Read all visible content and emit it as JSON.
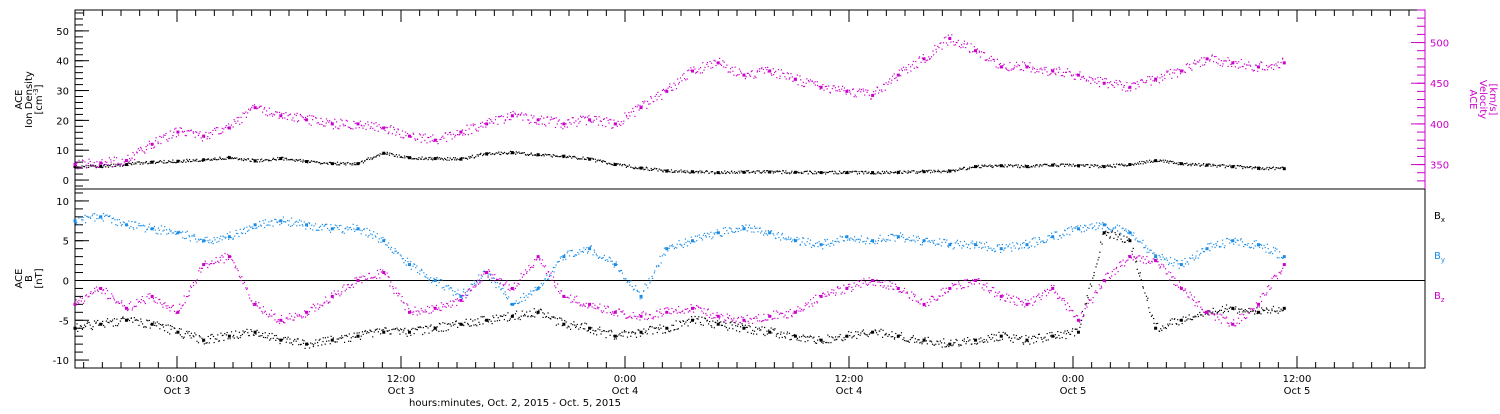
{
  "chart_data": [
    {
      "type": "scatter",
      "y_axis_left": {
        "lines": [
          "ACE",
          "Ion Density",
          "[cm^-3]"
        ],
        "range": [
          -3,
          57
        ],
        "ticks": [
          "0",
          "10",
          "20",
          "30",
          "40",
          "50"
        ],
        "tick_values": [
          0,
          10,
          20,
          30,
          40,
          50
        ]
      },
      "y_axis_right": {
        "lines": [
          "ACE",
          "Velocity",
          "[km/s]"
        ],
        "range": [
          320,
          540
        ],
        "ticks": [
          "350",
          "400",
          "450",
          "500"
        ],
        "tick_values": [
          350,
          400,
          450,
          500
        ],
        "color": "#cc00cc"
      },
      "series": [
        {
          "axis": "left",
          "color": "#000000",
          "points": [
            [
              0,
              4.5
            ],
            [
              4,
              4.6
            ],
            [
              8,
              5.2
            ],
            [
              12,
              6.0
            ],
            [
              16,
              6.3
            ],
            [
              20,
              6.8
            ],
            [
              24,
              7.5
            ],
            [
              28,
              6.4
            ],
            [
              32,
              7.2
            ],
            [
              36,
              6.2
            ],
            [
              40,
              5.5
            ],
            [
              44,
              5.5
            ],
            [
              48,
              9.0
            ],
            [
              52,
              7.5
            ],
            [
              56,
              7.2
            ],
            [
              60,
              7.0
            ],
            [
              64,
              8.8
            ],
            [
              68,
              9.2
            ],
            [
              72,
              8.5
            ],
            [
              76,
              8.0
            ],
            [
              80,
              7.0
            ],
            [
              84,
              5.2
            ],
            [
              88,
              4.0
            ],
            [
              92,
              3.0
            ],
            [
              96,
              2.8
            ],
            [
              100,
              2.5
            ],
            [
              104,
              2.6
            ],
            [
              108,
              2.7
            ],
            [
              112,
              2.6
            ],
            [
              116,
              2.5
            ],
            [
              120,
              2.5
            ],
            [
              124,
              2.5
            ],
            [
              128,
              2.6
            ],
            [
              132,
              2.8
            ],
            [
              136,
              3.0
            ],
            [
              140,
              4.5
            ],
            [
              144,
              4.8
            ],
            [
              148,
              4.5
            ],
            [
              152,
              5.0
            ],
            [
              156,
              4.8
            ],
            [
              160,
              4.5
            ],
            [
              164,
              5.2
            ],
            [
              168,
              6.5
            ],
            [
              172,
              5.5
            ],
            [
              176,
              5.0
            ],
            [
              180,
              4.5
            ],
            [
              184,
              4.0
            ],
            [
              188,
              3.8
            ]
          ]
        },
        {
          "axis": "right",
          "color": "#cc00cc",
          "points": [
            [
              0,
              350
            ],
            [
              4,
              352
            ],
            [
              8,
              355
            ],
            [
              12,
              375
            ],
            [
              16,
              390
            ],
            [
              20,
              385
            ],
            [
              24,
              395
            ],
            [
              28,
              420
            ],
            [
              32,
              410
            ],
            [
              36,
              405
            ],
            [
              40,
              400
            ],
            [
              44,
              400
            ],
            [
              48,
              395
            ],
            [
              52,
              385
            ],
            [
              56,
              380
            ],
            [
              60,
              390
            ],
            [
              64,
              400
            ],
            [
              68,
              410
            ],
            [
              72,
              405
            ],
            [
              76,
              400
            ],
            [
              80,
              405
            ],
            [
              84,
              400
            ],
            [
              88,
              420
            ],
            [
              92,
              440
            ],
            [
              96,
              465
            ],
            [
              100,
              475
            ],
            [
              104,
              460
            ],
            [
              108,
              465
            ],
            [
              112,
              455
            ],
            [
              116,
              445
            ],
            [
              120,
              440
            ],
            [
              124,
              435
            ],
            [
              128,
              460
            ],
            [
              132,
              480
            ],
            [
              136,
              505
            ],
            [
              140,
              490
            ],
            [
              144,
              470
            ],
            [
              148,
              470
            ],
            [
              152,
              465
            ],
            [
              156,
              460
            ],
            [
              160,
              450
            ],
            [
              164,
              445
            ],
            [
              168,
              455
            ],
            [
              172,
              465
            ],
            [
              176,
              480
            ],
            [
              180,
              475
            ],
            [
              184,
              470
            ],
            [
              188,
              475
            ]
          ]
        }
      ]
    },
    {
      "type": "scatter",
      "y_axis_left": {
        "lines": [
          "ACE",
          "B",
          "[nT]"
        ],
        "range": [
          -11,
          11.5
        ],
        "ticks": [
          "-10",
          "-5",
          "0",
          "5",
          "10"
        ],
        "tick_values": [
          -10,
          -5,
          0,
          5,
          10
        ]
      },
      "zero_line": true,
      "legend": [
        {
          "label": "B",
          "sub": "x",
          "color": "#000000"
        },
        {
          "label": "B",
          "sub": "y",
          "color": "#1a8ce6"
        },
        {
          "label": "B",
          "sub": "z",
          "color": "#cc00cc"
        }
      ],
      "series": [
        {
          "name": "Bx",
          "color": "#000000",
          "points": [
            [
              0,
              -6
            ],
            [
              4,
              -5.5
            ],
            [
              8,
              -5
            ],
            [
              12,
              -5.5
            ],
            [
              16,
              -6.5
            ],
            [
              20,
              -7.5
            ],
            [
              24,
              -7
            ],
            [
              28,
              -6.5
            ],
            [
              32,
              -7.5
            ],
            [
              36,
              -8
            ],
            [
              40,
              -7.5
            ],
            [
              44,
              -7
            ],
            [
              48,
              -6.5
            ],
            [
              52,
              -6.5
            ],
            [
              56,
              -6
            ],
            [
              60,
              -5.5
            ],
            [
              64,
              -5
            ],
            [
              68,
              -4.5
            ],
            [
              72,
              -4
            ],
            [
              76,
              -5.5
            ],
            [
              80,
              -6
            ],
            [
              84,
              -7
            ],
            [
              88,
              -6.5
            ],
            [
              92,
              -6
            ],
            [
              96,
              -5
            ],
            [
              100,
              -5.5
            ],
            [
              104,
              -6
            ],
            [
              108,
              -6.5
            ],
            [
              112,
              -7
            ],
            [
              116,
              -7.5
            ],
            [
              120,
              -7
            ],
            [
              124,
              -6.5
            ],
            [
              128,
              -7
            ],
            [
              132,
              -7.5
            ],
            [
              136,
              -8
            ],
            [
              140,
              -7.5
            ],
            [
              144,
              -7
            ],
            [
              148,
              -7.5
            ],
            [
              152,
              -7
            ],
            [
              156,
              -6.5
            ],
            [
              160,
              6
            ],
            [
              164,
              5
            ],
            [
              168,
              -6
            ],
            [
              172,
              -5
            ],
            [
              176,
              -4
            ],
            [
              180,
              -3.5
            ],
            [
              184,
              -4
            ],
            [
              188,
              -3.5
            ]
          ]
        },
        {
          "name": "By",
          "color": "#1a8ce6",
          "points": [
            [
              0,
              7.5
            ],
            [
              4,
              8
            ],
            [
              8,
              7
            ],
            [
              12,
              6.5
            ],
            [
              16,
              6
            ],
            [
              20,
              5
            ],
            [
              24,
              5.5
            ],
            [
              28,
              7
            ],
            [
              32,
              7.5
            ],
            [
              36,
              7
            ],
            [
              40,
              6.5
            ],
            [
              44,
              6.5
            ],
            [
              48,
              5
            ],
            [
              52,
              2
            ],
            [
              56,
              0
            ],
            [
              60,
              -2
            ],
            [
              64,
              1
            ],
            [
              68,
              -3
            ],
            [
              72,
              -1
            ],
            [
              76,
              3
            ],
            [
              80,
              4
            ],
            [
              84,
              2
            ],
            [
              88,
              -2
            ],
            [
              92,
              4
            ],
            [
              96,
              5
            ],
            [
              100,
              6
            ],
            [
              104,
              6.5
            ],
            [
              108,
              6
            ],
            [
              112,
              5
            ],
            [
              116,
              4.5
            ],
            [
              120,
              5.5
            ],
            [
              124,
              5
            ],
            [
              128,
              5.5
            ],
            [
              132,
              5
            ],
            [
              136,
              4.5
            ],
            [
              140,
              4.5
            ],
            [
              144,
              4
            ],
            [
              148,
              4.5
            ],
            [
              152,
              5.5
            ],
            [
              156,
              6.5
            ],
            [
              160,
              7
            ],
            [
              164,
              6
            ],
            [
              168,
              3
            ],
            [
              172,
              2
            ],
            [
              176,
              4
            ],
            [
              180,
              5
            ],
            [
              184,
              4.5
            ],
            [
              188,
              3
            ]
          ]
        },
        {
          "name": "Bz",
          "color": "#cc00cc",
          "points": [
            [
              0,
              -3
            ],
            [
              4,
              -1
            ],
            [
              8,
              -3.5
            ],
            [
              12,
              -2
            ],
            [
              16,
              -4
            ],
            [
              20,
              2
            ],
            [
              24,
              3
            ],
            [
              28,
              -3
            ],
            [
              32,
              -5
            ],
            [
              36,
              -4
            ],
            [
              40,
              -2
            ],
            [
              44,
              0
            ],
            [
              48,
              1
            ],
            [
              52,
              -4
            ],
            [
              56,
              -3.5
            ],
            [
              60,
              -2.5
            ],
            [
              64,
              1
            ],
            [
              68,
              -1
            ],
            [
              72,
              3
            ],
            [
              76,
              -2
            ],
            [
              80,
              -3
            ],
            [
              84,
              -4
            ],
            [
              88,
              -4.5
            ],
            [
              92,
              -4
            ],
            [
              96,
              -3.5
            ],
            [
              100,
              -4.5
            ],
            [
              104,
              -5
            ],
            [
              108,
              -4.5
            ],
            [
              112,
              -4
            ],
            [
              116,
              -2
            ],
            [
              120,
              -1
            ],
            [
              124,
              0
            ],
            [
              128,
              -1
            ],
            [
              132,
              -3
            ],
            [
              136,
              -1
            ],
            [
              140,
              0
            ],
            [
              144,
              -2
            ],
            [
              148,
              -3
            ],
            [
              152,
              -1
            ],
            [
              156,
              -5
            ],
            [
              160,
              0
            ],
            [
              164,
              3
            ],
            [
              168,
              2.5
            ],
            [
              172,
              -1
            ],
            [
              176,
              -4
            ],
            [
              180,
              -5.5
            ],
            [
              184,
              -3
            ],
            [
              188,
              2
            ]
          ]
        }
      ]
    }
  ],
  "x_axis": {
    "range": [
      0,
      192
    ],
    "ticks": [
      {
        "hours": 0,
        "time": "0:00",
        "day": "Oct 3"
      },
      {
        "hours": 12,
        "time": "12:00",
        "day": "Oct 3"
      },
      {
        "hours": 24,
        "time": "0:00",
        "day": "Oct 4"
      },
      {
        "hours": 36,
        "time": "12:00",
        "day": "Oct 4"
      },
      {
        "hours": 48,
        "time": "0:00",
        "day": "Oct 5"
      },
      {
        "hours": 60,
        "time": "12:00",
        "day": "Oct 5"
      }
    ],
    "label": "hours:minutes, Oct.  2, 2015 - Oct.  5, 2015"
  }
}
